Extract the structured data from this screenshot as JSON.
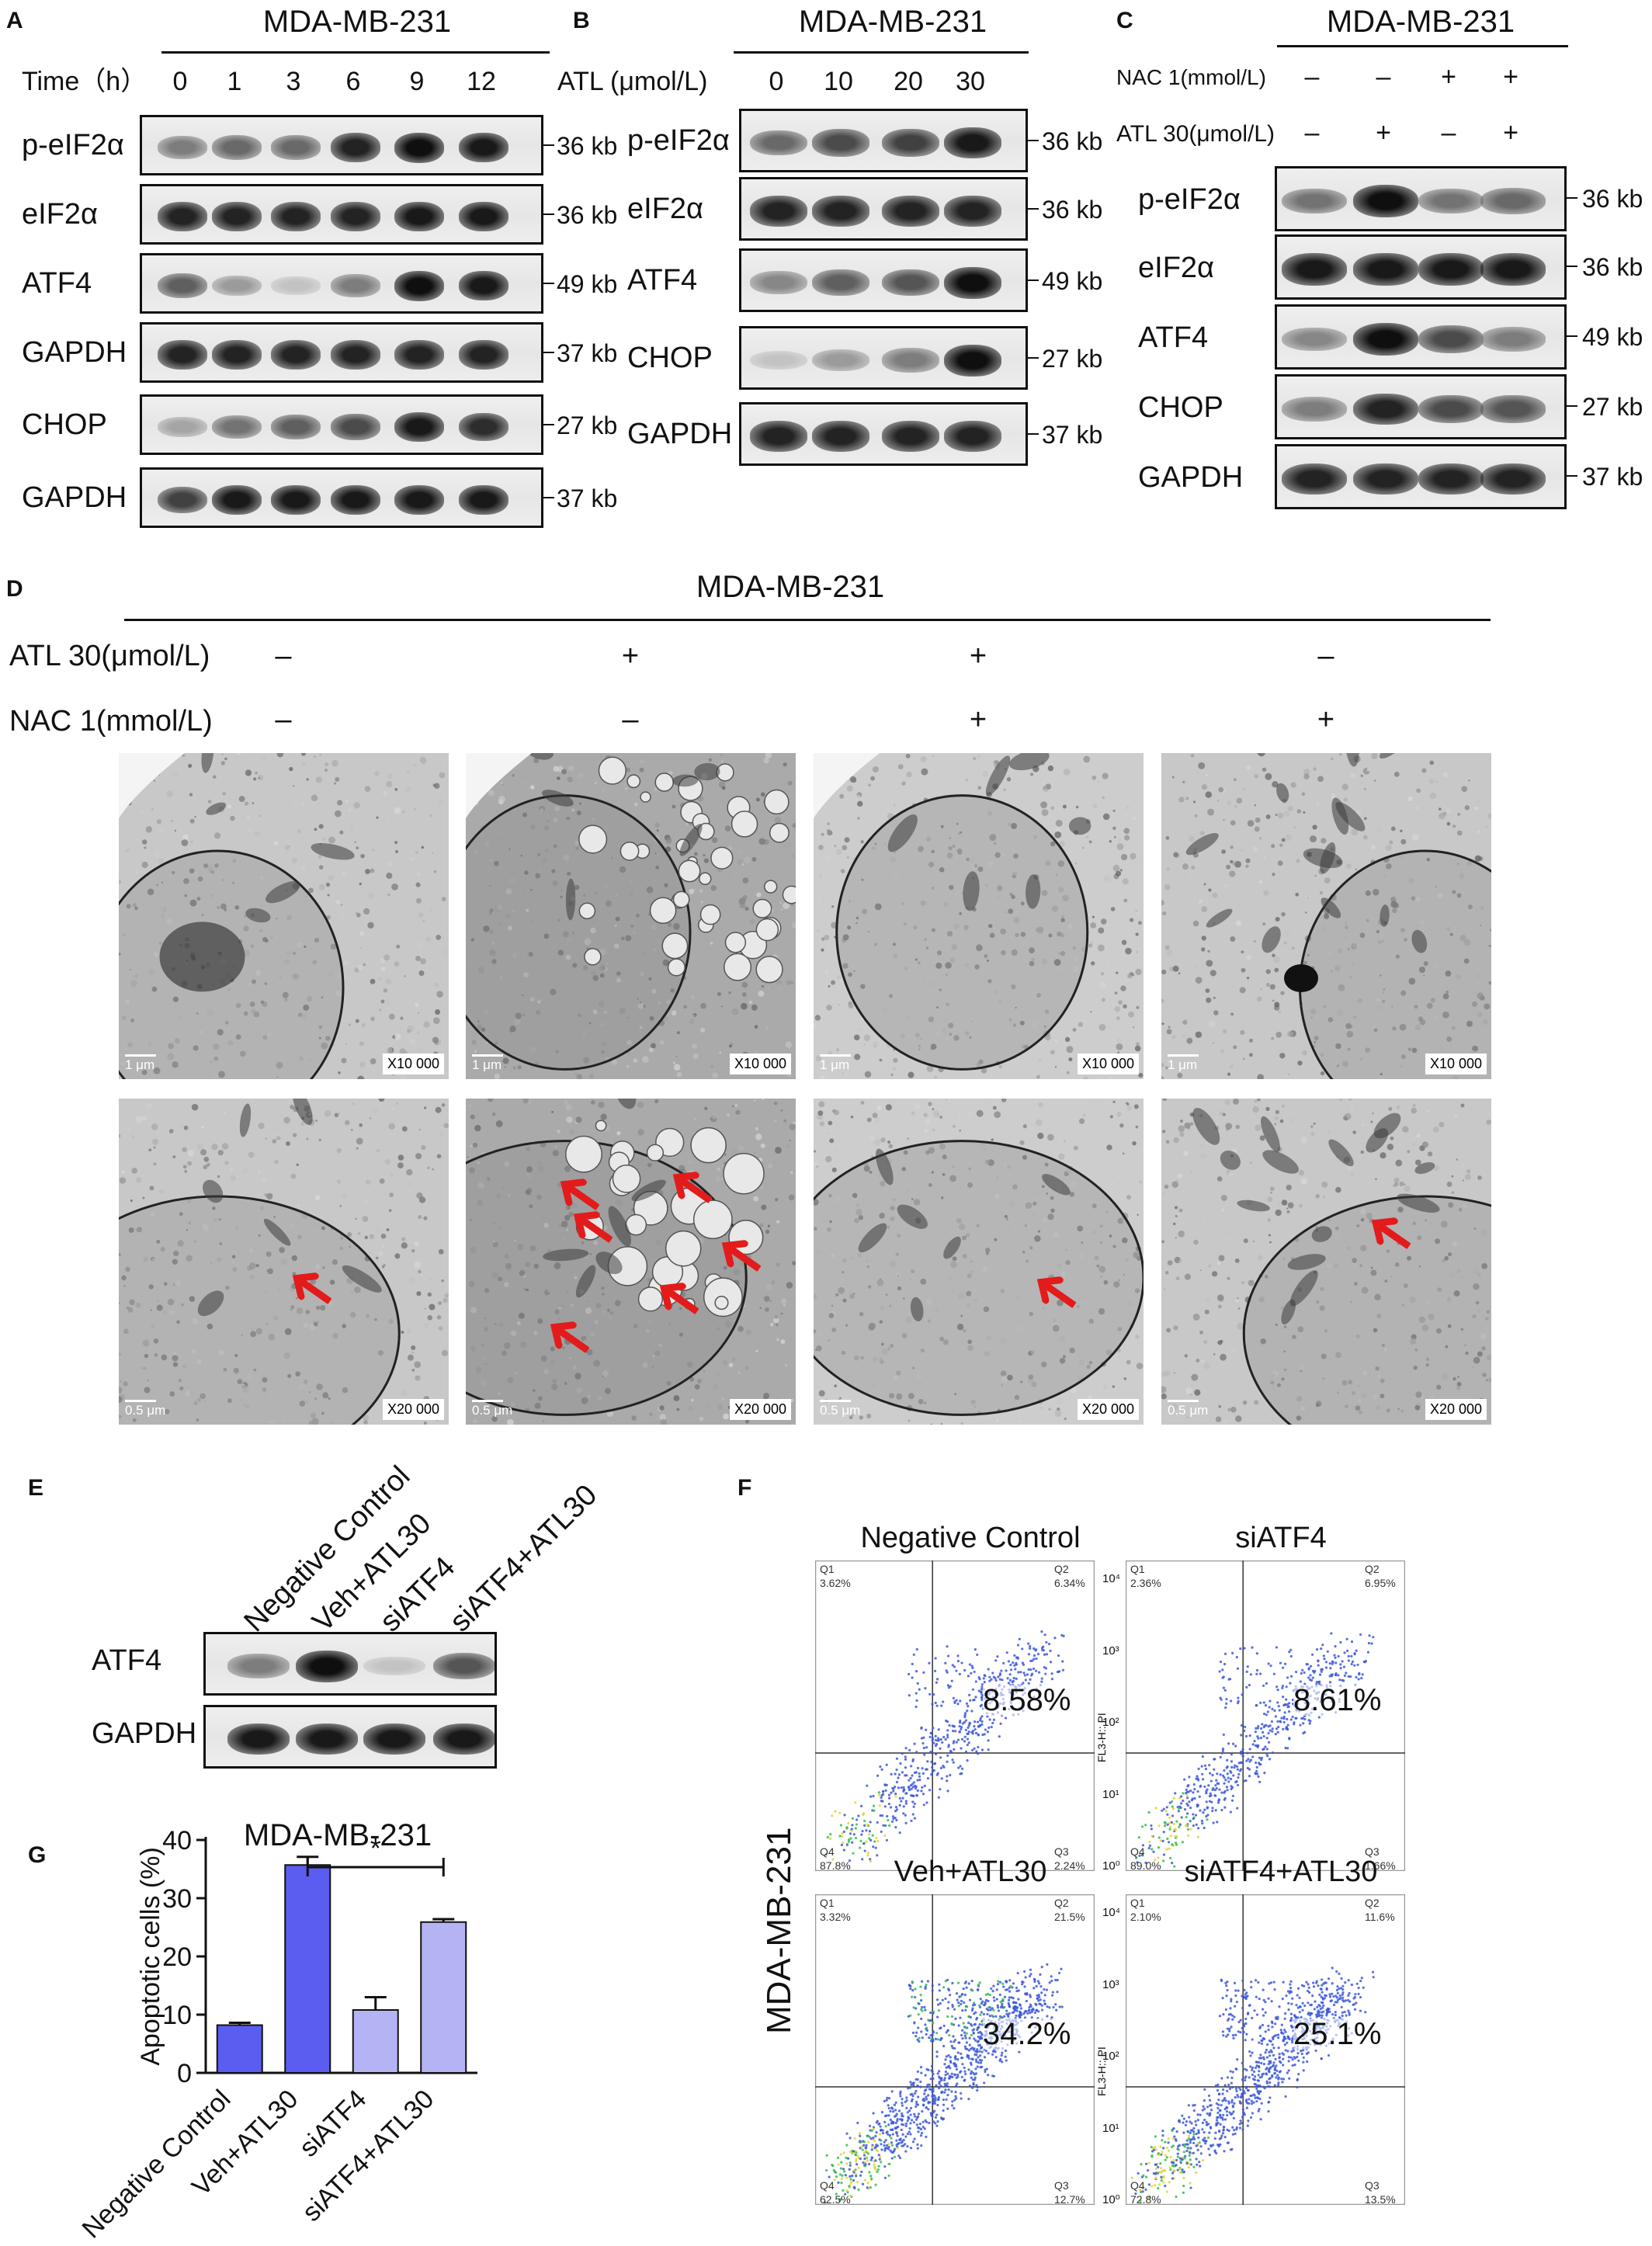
{
  "panelA": {
    "letter": "A",
    "title": "MDA-MB-231",
    "condition_label": "Time（h）",
    "conditions": [
      "0",
      "1",
      "3",
      "6",
      "9",
      "12"
    ],
    "rows": [
      {
        "name": "p-eIF2α",
        "kb": "36 kb",
        "intensity": [
          0.45,
          0.55,
          0.55,
          0.9,
          1.0,
          0.95
        ]
      },
      {
        "name": "eIF2α",
        "kb": "36 kb",
        "intensity": [
          0.9,
          0.9,
          0.9,
          0.9,
          0.95,
          0.95
        ]
      },
      {
        "name": "ATF4",
        "kb": "49 kb",
        "intensity": [
          0.6,
          0.3,
          0.1,
          0.45,
          1.0,
          0.95
        ]
      },
      {
        "name": "GAPDH",
        "kb": "37 kb",
        "intensity": [
          0.9,
          0.9,
          0.9,
          0.9,
          0.9,
          0.9
        ]
      },
      {
        "name": "CHOP",
        "kb": "27 kb",
        "intensity": [
          0.25,
          0.5,
          0.6,
          0.7,
          0.95,
          0.85
        ]
      },
      {
        "name": "GAPDH",
        "kb": "37 kb",
        "intensity": [
          0.75,
          0.95,
          0.95,
          0.95,
          0.95,
          0.95
        ]
      }
    ]
  },
  "panelB": {
    "letter": "B",
    "title": "MDA-MB-231",
    "condition_label": "ATL (μmol/L)",
    "conditions": [
      "0",
      "10",
      "20",
      "30"
    ],
    "rows": [
      {
        "name": "p-eIF2α",
        "kb": "36 kb",
        "intensity": [
          0.55,
          0.7,
          0.75,
          0.95
        ]
      },
      {
        "name": "eIF2α",
        "kb": "36 kb",
        "intensity": [
          0.9,
          0.9,
          0.9,
          0.9
        ]
      },
      {
        "name": "ATF4",
        "kb": "49 kb",
        "intensity": [
          0.4,
          0.6,
          0.65,
          1.0
        ]
      },
      {
        "name": "CHOP",
        "kb": "27 kb",
        "intensity": [
          0.1,
          0.3,
          0.45,
          1.0
        ]
      },
      {
        "name": "GAPDH",
        "kb": "37 kb",
        "intensity": [
          0.9,
          0.9,
          0.9,
          0.9
        ]
      }
    ]
  },
  "panelC": {
    "letter": "C",
    "title": "MDA-MB-231",
    "treat1_label": "NAC 1(mmol/L)",
    "treat1": [
      "–",
      "–",
      "+",
      "+"
    ],
    "treat2_label": "ATL 30(μmol/L)",
    "treat2": [
      "–",
      "+",
      "–",
      "+"
    ],
    "rows": [
      {
        "name": "p-eIF2α",
        "kb": "36 kb",
        "intensity": [
          0.5,
          1.0,
          0.5,
          0.55
        ]
      },
      {
        "name": "eIF2α",
        "kb": "36 kb",
        "intensity": [
          0.95,
          0.95,
          0.95,
          0.95
        ]
      },
      {
        "name": "ATF4",
        "kb": "49 kb",
        "intensity": [
          0.4,
          1.0,
          0.7,
          0.45
        ]
      },
      {
        "name": "CHOP",
        "kb": "27 kb",
        "intensity": [
          0.45,
          0.9,
          0.7,
          0.65
        ]
      },
      {
        "name": "GAPDH",
        "kb": "37 kb",
        "intensity": [
          0.9,
          0.9,
          0.9,
          0.9
        ]
      }
    ]
  },
  "panelD": {
    "letter": "D",
    "title": "MDA-MB-231",
    "atl_label": "ATL 30(μmol/L)",
    "atl": [
      "–",
      "+",
      "+",
      "–"
    ],
    "nac_label": "NAC 1(mmol/L)",
    "nac": [
      "–",
      "–",
      "+",
      "+"
    ],
    "row1_mag": "X10 000",
    "row2_mag": "X20 000",
    "row1_scale": "1 μm",
    "row2_scale": "0.5 μm",
    "arrows_per_image": [
      1,
      6,
      1,
      1
    ]
  },
  "panelE": {
    "letter": "E",
    "lanes": [
      "Negative Control",
      "Veh+ATL30",
      "siATF4",
      "siATF4+ATL30"
    ],
    "rows": [
      {
        "name": "ATF4",
        "intensity": [
          0.45,
          1.0,
          0.1,
          0.65
        ]
      },
      {
        "name": "GAPDH",
        "intensity": [
          0.95,
          0.95,
          0.95,
          0.95
        ]
      }
    ]
  },
  "panelF": {
    "letter": "F",
    "side_label": "MDA-MB-231",
    "plots": [
      {
        "title": "Negative Control",
        "q1": "3.62%",
        "q2": "6.34%",
        "q3": "2.24%",
        "q4": "87.8%",
        "apoptotic": "8.58%",
        "show_axis": false,
        "density": 0.6
      },
      {
        "title": "siATF4",
        "q1": "2.36%",
        "q2": "6.95%",
        "q3": "1.66%",
        "q4": "89.0%",
        "apoptotic": "8.61%",
        "show_axis": true,
        "density": 0.6
      },
      {
        "title": "Veh+ATL30",
        "q1": "3.32%",
        "q2": "21.5%",
        "q3": "12.7%",
        "q4": "62.5%",
        "apoptotic": "34.2%",
        "show_axis": false,
        "density": 1.0
      },
      {
        "title": "siATF4+ATL30",
        "q1": "2.10%",
        "q2": "11.6%",
        "q3": "13.5%",
        "q4": "72.8%",
        "apoptotic": "25.1%",
        "show_axis": true,
        "density": 0.9
      }
    ],
    "axis_label": "FL3-H:: PI",
    "axis_ticks": [
      "10⁰",
      "10¹",
      "10²",
      "10³",
      "10⁴"
    ]
  },
  "chart_data": {
    "type": "bar",
    "panel_letter": "G",
    "title": "MDA-MB-231",
    "ylabel": "Apoptotic cells (%)",
    "xlabel": "",
    "categories": [
      "Negative Control",
      "Veh+ATL30",
      "siATF4",
      "siATF4+ATL30"
    ],
    "values": [
      8.2,
      35.7,
      10.8,
      25.9
    ],
    "errors": [
      0.4,
      1.4,
      2.2,
      0.5
    ],
    "colors": [
      "#5b5cf0",
      "#5b5cf0",
      "#b4b4f4",
      "#b4b4f4"
    ],
    "ylim": [
      0,
      40
    ],
    "yticks": [
      "0",
      "10",
      "20",
      "30",
      "40"
    ],
    "significance": {
      "from": 1,
      "to": 3,
      "label": "*"
    }
  }
}
